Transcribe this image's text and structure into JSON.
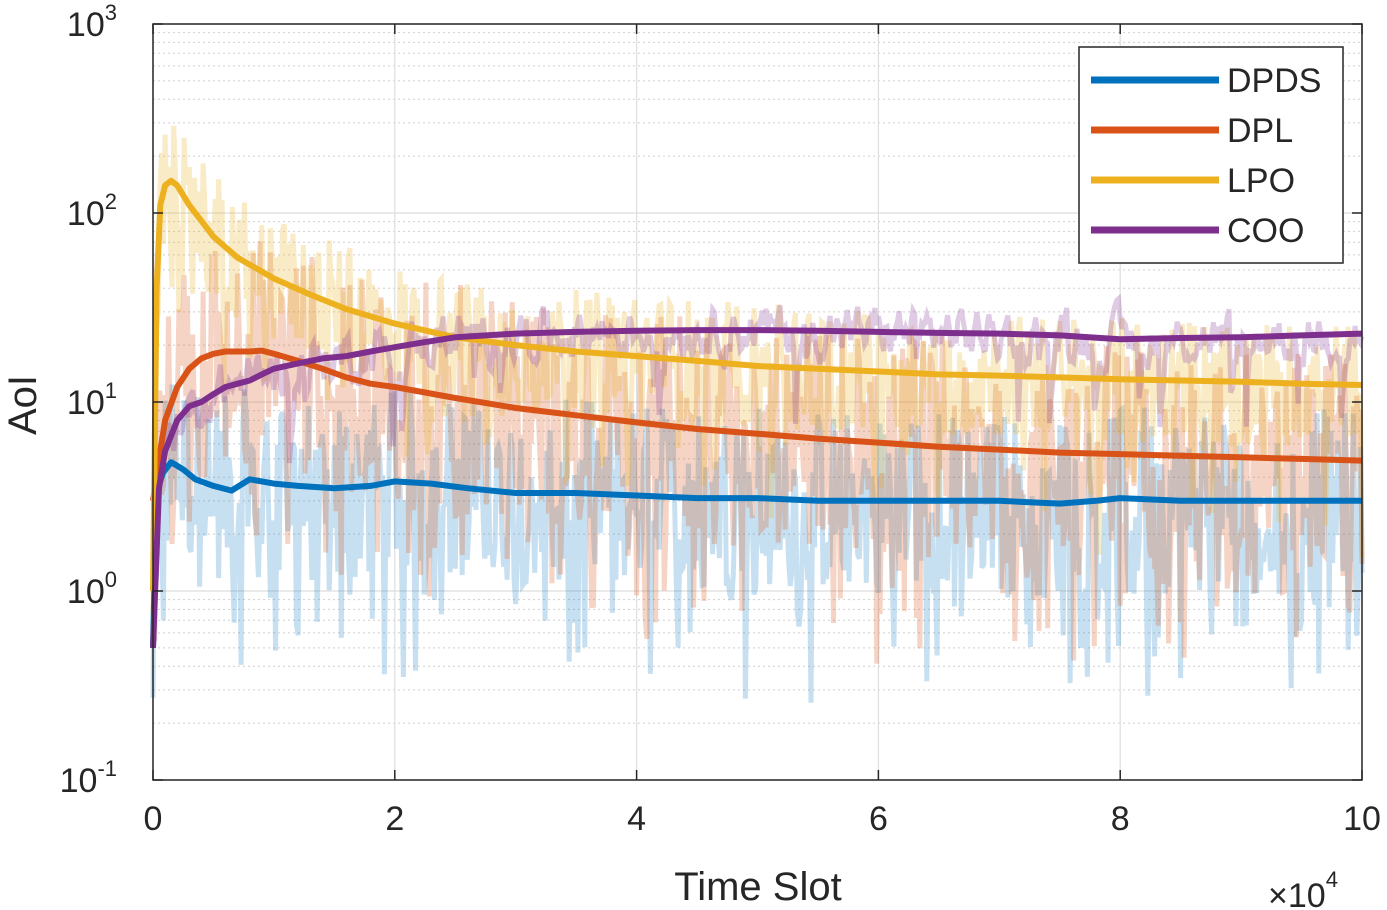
{
  "chart_data": {
    "type": "line",
    "title": "",
    "xlabel": "Time Slot",
    "ylabel": "AoI",
    "x_multiplier": {
      "base": "×10",
      "exponent": "4"
    },
    "xlim": [
      0,
      10
    ],
    "ylim_log10": [
      -1,
      3
    ],
    "y_scale": "log",
    "grid": true,
    "minor_grid": true,
    "legend_position": "top-right",
    "x_ticks": [
      {
        "value": 0,
        "label": "0"
      },
      {
        "value": 2,
        "label": "2"
      },
      {
        "value": 4,
        "label": "4"
      },
      {
        "value": 6,
        "label": "6"
      },
      {
        "value": 8,
        "label": "8"
      },
      {
        "value": 10,
        "label": "10"
      }
    ],
    "y_ticks": [
      {
        "value": 0.1,
        "base": "10",
        "exp": "-1"
      },
      {
        "value": 1,
        "base": "10",
        "exp": "0"
      },
      {
        "value": 10,
        "base": "10",
        "exp": "1"
      },
      {
        "value": 100,
        "base": "10",
        "exp": "2"
      },
      {
        "value": 1000,
        "base": "10",
        "exp": "3"
      }
    ],
    "series": [
      {
        "name": "DPDS",
        "color": "#0072BD",
        "x": [
          0,
          0.03,
          0.08,
          0.15,
          0.25,
          0.35,
          0.5,
          0.65,
          0.8,
          1.0,
          1.2,
          1.5,
          1.8,
          2.0,
          2.3,
          2.6,
          3.0,
          3.5,
          4.0,
          4.5,
          5.0,
          5.5,
          6.0,
          6.5,
          7.0,
          7.5,
          7.8,
          8.0,
          8.5,
          9.0,
          9.5,
          10.0
        ],
        "y": [
          0.5,
          3.3,
          4.2,
          4.8,
          4.4,
          3.9,
          3.6,
          3.4,
          3.9,
          3.7,
          3.6,
          3.5,
          3.6,
          3.8,
          3.7,
          3.5,
          3.3,
          3.3,
          3.2,
          3.1,
          3.1,
          3.0,
          3.0,
          3.0,
          3.0,
          2.9,
          3.0,
          3.1,
          3.0,
          3.0,
          3.0,
          3.0
        ]
      },
      {
        "name": "DPL",
        "color": "#D95319",
        "x": [
          0,
          0.05,
          0.1,
          0.2,
          0.3,
          0.4,
          0.5,
          0.6,
          0.7,
          0.8,
          0.9,
          1.0,
          1.2,
          1.4,
          1.6,
          1.8,
          2.0,
          2.5,
          3.0,
          3.5,
          4.0,
          4.5,
          5.0,
          5.5,
          6.0,
          6.5,
          7.0,
          7.5,
          8.0,
          8.5,
          9.0,
          9.5,
          10.0
        ],
        "y": [
          3.0,
          5.0,
          8.0,
          12.0,
          15.0,
          17.0,
          18.0,
          18.5,
          18.5,
          18.5,
          18.7,
          18.0,
          16.5,
          15.0,
          13.5,
          12.5,
          12.0,
          10.5,
          9.3,
          8.5,
          7.8,
          7.2,
          6.8,
          6.4,
          6.1,
          5.8,
          5.6,
          5.4,
          5.3,
          5.2,
          5.1,
          5.0,
          4.9
        ]
      },
      {
        "name": "LPO",
        "color": "#EDB120",
        "x": [
          0,
          0.03,
          0.06,
          0.1,
          0.15,
          0.2,
          0.3,
          0.5,
          0.7,
          1.0,
          1.3,
          1.6,
          2.0,
          2.5,
          3.0,
          3.5,
          4.0,
          4.5,
          5.0,
          5.5,
          6.0,
          6.5,
          7.0,
          7.5,
          8.0,
          8.5,
          9.0,
          9.5,
          10.0
        ],
        "y": [
          1.0,
          40.0,
          110.0,
          140.0,
          148.0,
          140.0,
          110.0,
          75.0,
          58.0,
          45.0,
          37.0,
          31.0,
          26.0,
          22.0,
          20.0,
          18.5,
          17.5,
          16.5,
          15.5,
          15.0,
          14.5,
          14.0,
          13.8,
          13.5,
          13.2,
          13.0,
          12.8,
          12.5,
          12.3
        ]
      },
      {
        "name": "COO",
        "color": "#7E2F8E",
        "x": [
          0,
          0.05,
          0.1,
          0.2,
          0.3,
          0.4,
          0.5,
          0.6,
          0.7,
          0.8,
          0.9,
          1.0,
          1.2,
          1.4,
          1.6,
          1.8,
          2.0,
          2.2,
          2.5,
          3.0,
          3.5,
          4.0,
          4.5,
          5.0,
          5.5,
          6.0,
          6.5,
          7.0,
          7.5,
          8.0,
          8.5,
          9.0,
          9.5,
          10.0
        ],
        "y": [
          0.5,
          3.5,
          5.5,
          8.0,
          9.5,
          10.0,
          11.0,
          12.0,
          12.5,
          13.0,
          14.0,
          15.0,
          16.0,
          17.0,
          17.5,
          18.5,
          19.5,
          20.5,
          22.0,
          23.0,
          23.5,
          23.8,
          24.0,
          24.0,
          23.8,
          23.5,
          23.2,
          23.0,
          22.5,
          21.5,
          21.8,
          22.0,
          22.5,
          23.0
        ]
      }
    ]
  }
}
